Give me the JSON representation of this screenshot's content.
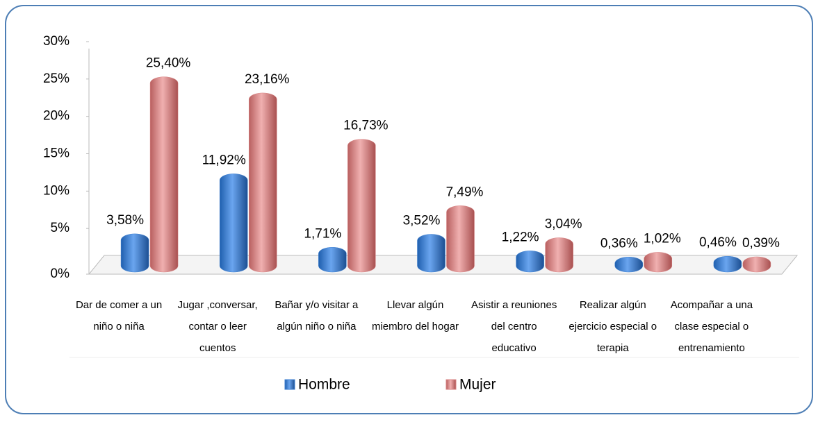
{
  "chart_data": {
    "type": "bar",
    "categories": [
      [
        "Dar de comer a un",
        "niño o niña"
      ],
      [
        "Jugar ,conversar,",
        "contar o leer",
        "cuentos"
      ],
      [
        "Bañar y/o visitar a",
        "algún niño o niña"
      ],
      [
        "Llevar algún",
        "miembro del hogar"
      ],
      [
        "Asistir a reuniones",
        "del centro",
        "educativo"
      ],
      [
        "Realizar algún",
        "ejercicio especial o",
        "terapia"
      ],
      [
        "Acompañar a una",
        "clase especial o",
        "entrenamiento"
      ]
    ],
    "series": [
      {
        "name": "Hombre",
        "color": "#3d7fd0",
        "values": [
          3.58,
          11.92,
          1.71,
          3.52,
          1.22,
          0.36,
          0.46
        ],
        "value_labels": [
          "3,58%",
          "11,92%",
          "1,71%",
          "3,52%",
          "1,22%",
          "0,36%",
          "0,46%"
        ]
      },
      {
        "name": "Mujer",
        "color": "#d98585",
        "values": [
          25.4,
          23.16,
          16.73,
          7.49,
          3.04,
          1.02,
          0.39
        ],
        "value_labels": [
          "25,40%",
          "23,16%",
          "16,73%",
          "7,49%",
          "3,04%",
          "1,02%",
          "0,39%"
        ]
      }
    ],
    "ylim": [
      0,
      30
    ],
    "yticks": [
      {
        "value": 0,
        "label": "0%"
      },
      {
        "value": 5,
        "label": "5%"
      },
      {
        "value": 10,
        "label": "10%"
      },
      {
        "value": 15,
        "label": "15%"
      },
      {
        "value": 20,
        "label": "20%"
      },
      {
        "value": 25,
        "label": "25%"
      },
      {
        "value": 30,
        "label": "30%"
      }
    ],
    "legend": "bottom"
  }
}
